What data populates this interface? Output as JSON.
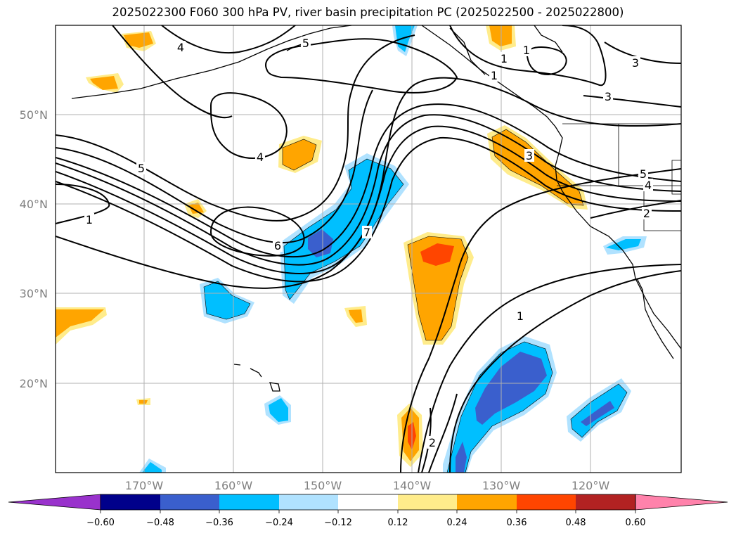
{
  "title": "2025022300 F060 300 hPa PV, river basin precipitation PC (2025022500 - 2025022800)",
  "lat_labels": [
    "50°N",
    "40°N",
    "30°N",
    "20°N"
  ],
  "lon_labels": [
    "170°W",
    "160°W",
    "150°W",
    "140°W",
    "130°W",
    "120°W"
  ],
  "colorbar": {
    "tick_labels": [
      "−0.60",
      "−0.48",
      "−0.36",
      "−0.24",
      "−0.12",
      "0.12",
      "0.24",
      "0.36",
      "0.48",
      "0.60"
    ],
    "colors": [
      "#9932cc",
      "#00008b",
      "#3a5fcd",
      "#00bfff",
      "#b0e2ff",
      "#ffffff",
      "#ffec8b",
      "#ffa500",
      "#ff4500",
      "#b22222",
      "#ff82ab"
    ]
  },
  "contour_labels": [
    "4",
    "5",
    "1",
    "3",
    "1",
    "3",
    "5",
    "4",
    "2",
    "3",
    "4",
    "5",
    "1",
    "6",
    "7",
    "1",
    "2",
    "1"
  ],
  "colors": {
    "positive_orange": "#ffa500",
    "positive_yellow": "#ffec8b",
    "positive_red": "#ff4500",
    "negative_cyan": "#00bfff",
    "negative_blue": "#3a5fcd",
    "grid": "#b0b0b0"
  }
}
